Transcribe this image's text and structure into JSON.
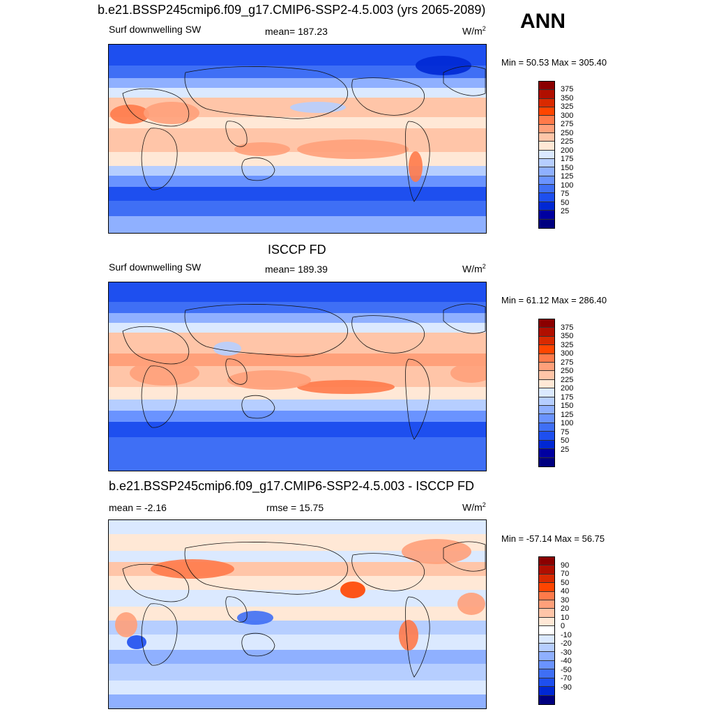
{
  "header": {
    "title": "b.e21.BSSP245cmip6.f09_g17.CMIP6-SSP2-4.5.003 (yrs 2065-2089)",
    "season": "ANN"
  },
  "panels": [
    {
      "title": "",
      "left_label": "Surf downwelling SW",
      "center_label": "mean= 187.23",
      "units": "W/m",
      "units_sup": "2",
      "minmax": "Min =  50.53 Max = 305.40",
      "colorbar": {
        "colors": [
          "#8b0000",
          "#b00f00",
          "#d92a00",
          "#ff4500",
          "#ff7a4a",
          "#ffa07a",
          "#ffc5a8",
          "#ffe8d6",
          "#dbe9ff",
          "#b6ceff",
          "#8fb0ff",
          "#6a93ff",
          "#3f6ff5",
          "#1e4fef",
          "#0028d4",
          "#0000a0",
          "#000080"
        ],
        "labels": [
          "375",
          "350",
          "325",
          "300",
          "275",
          "250",
          "225",
          "200",
          "175",
          "150",
          "125",
          "100",
          "75",
          "50",
          "25"
        ]
      }
    },
    {
      "title": "ISCCP FD",
      "left_label": "Surf downwelling SW",
      "center_label": "mean= 189.39",
      "units": "W/m",
      "units_sup": "2",
      "minmax": "Min =  61.12 Max = 286.40",
      "colorbar": {
        "colors": [
          "#8b0000",
          "#b00f00",
          "#d92a00",
          "#ff4500",
          "#ff7a4a",
          "#ffa07a",
          "#ffc5a8",
          "#ffe8d6",
          "#dbe9ff",
          "#b6ceff",
          "#8fb0ff",
          "#6a93ff",
          "#3f6ff5",
          "#1e4fef",
          "#0028d4",
          "#0000a0",
          "#000080"
        ],
        "labels": [
          "375",
          "350",
          "325",
          "300",
          "275",
          "250",
          "225",
          "200",
          "175",
          "150",
          "125",
          "100",
          "75",
          "50",
          "25"
        ]
      }
    },
    {
      "title": "b.e21.BSSP245cmip6.f09_g17.CMIP6-SSP2-4.5.003 - ISCCP FD",
      "left_label": "mean =  -2.16",
      "center_label": "rmse =  15.75",
      "units": "W/m",
      "units_sup": "2",
      "minmax": "Min = -57.14 Max =  56.75",
      "colorbar": {
        "colors": [
          "#8b0000",
          "#b00f00",
          "#d92a00",
          "#ff4500",
          "#ff7a4a",
          "#ffa07a",
          "#ffc5a8",
          "#ffe8d6",
          "#ffffff",
          "#dbe9ff",
          "#b6ceff",
          "#8fb0ff",
          "#6a93ff",
          "#3f6ff5",
          "#1e4fef",
          "#0028d4",
          "#000080"
        ],
        "labels": [
          "90",
          "70",
          "50",
          "40",
          "30",
          "20",
          "10",
          "0",
          "-10",
          "-20",
          "-30",
          "-40",
          "-50",
          "-70",
          "-90"
        ]
      }
    }
  ],
  "chart_data": [
    {
      "type": "heatmap",
      "title": "b.e21.BSSP245cmip6.f09_g17.CMIP6-SSP2-4.5.003 (yrs 2065-2089)",
      "variable": "Surf downwelling SW",
      "units": "W/m2",
      "mean": 187.23,
      "min": 50.53,
      "max": 305.4,
      "contour_levels": [
        25,
        50,
        75,
        100,
        125,
        150,
        175,
        200,
        225,
        250,
        275,
        300,
        325,
        350,
        375
      ]
    },
    {
      "type": "heatmap",
      "title": "ISCCP FD",
      "variable": "Surf downwelling SW",
      "units": "W/m2",
      "mean": 189.39,
      "min": 61.12,
      "max": 286.4,
      "contour_levels": [
        25,
        50,
        75,
        100,
        125,
        150,
        175,
        200,
        225,
        250,
        275,
        300,
        325,
        350,
        375
      ]
    },
    {
      "type": "heatmap",
      "title": "b.e21.BSSP245cmip6.f09_g17.CMIP6-SSP2-4.5.003 - ISCCP FD",
      "units": "W/m2",
      "mean": -2.16,
      "rmse": 15.75,
      "min": -57.14,
      "max": 56.75,
      "contour_levels": [
        -90,
        -70,
        -50,
        -40,
        -30,
        -20,
        -10,
        0,
        10,
        20,
        30,
        40,
        50,
        70,
        90
      ]
    }
  ]
}
